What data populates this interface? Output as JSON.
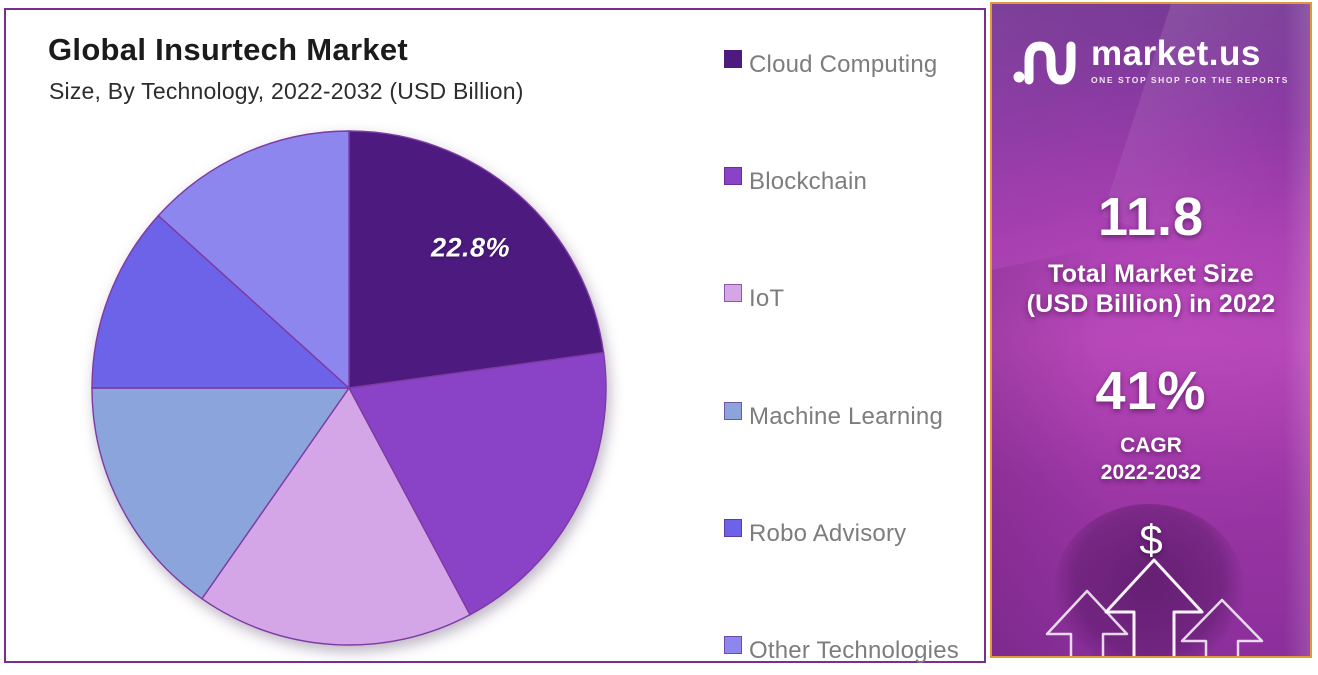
{
  "chart": {
    "title": "Global Insurtech Market",
    "subtitle": "Size, By Technology, 2022-2032 (USD Billion)"
  },
  "chart_data": {
    "type": "pie",
    "title": "Global Insurtech Market",
    "subtitle": "Size, By Technology, 2022-2032 (USD Billion)",
    "unit": "percent share",
    "start_angle_deg": 0,
    "direction": "clockwise",
    "legend_position": "right",
    "labeled_slice": {
      "index": 0,
      "text": "22.8%"
    },
    "slices": [
      {
        "label": "Cloud Computing",
        "value": 22.8,
        "color": "#4d1a7f",
        "data_label": "22.8%"
      },
      {
        "label": "Blockchain",
        "value": 19.4,
        "color": "#8a43c7",
        "data_label": ""
      },
      {
        "label": "IoT",
        "value": 17.5,
        "color": "#d4a6e8",
        "data_label": ""
      },
      {
        "label": "Machine Learning",
        "value": 15.3,
        "color": "#8ba4dc",
        "data_label": ""
      },
      {
        "label": "Robo Advisory",
        "value": 11.7,
        "color": "#6d63e8",
        "data_label": ""
      },
      {
        "label": "Other Technologies",
        "value": 13.3,
        "color": "#8d86ef",
        "data_label": ""
      }
    ],
    "slice_stroke_color": "#7d3aa3"
  },
  "sidebar": {
    "brand": {
      "name": "market.us",
      "tagline": "ONE STOP SHOP FOR THE REPORTS"
    },
    "stat_primary": {
      "value": "11.8",
      "label_line1": "Total Market Size",
      "label_line2": "(USD Billion) in 2022"
    },
    "stat_secondary": {
      "value": "41%",
      "label_line1": "CAGR",
      "label_line2": "2022-2032"
    },
    "dollar_symbol": "$"
  },
  "colors": {
    "panel_border": "#7b2e92",
    "sidebar_border": "#e09a35",
    "legend_text": "#7d7d7d",
    "title_text": "#1b1b1b"
  }
}
